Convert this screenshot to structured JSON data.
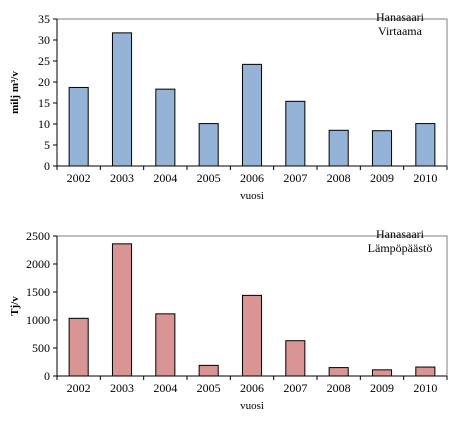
{
  "chart_data": [
    {
      "type": "bar",
      "title": "Hanasaari",
      "subtitle": "Virtaama",
      "xlabel": "vuosi",
      "ylabel": "milj m³/v",
      "categories": [
        "2002",
        "2003",
        "2004",
        "2005",
        "2006",
        "2007",
        "2008",
        "2009",
        "2010"
      ],
      "values": [
        18.7,
        31.7,
        18.3,
        10.1,
        24.2,
        15.4,
        8.5,
        8.4,
        10.1
      ],
      "ylim": [
        0,
        35
      ],
      "yticks": [
        0,
        5,
        10,
        15,
        20,
        25,
        30,
        35
      ],
      "grid": false,
      "legend": "none",
      "colors": {
        "bar": "#95b3d7",
        "edge": "#000000"
      }
    },
    {
      "type": "bar",
      "title": "Hanasaari",
      "subtitle": "Lämpöpäästö",
      "xlabel": "vuosi",
      "ylabel": "Tj/v",
      "categories": [
        "2002",
        "2003",
        "2004",
        "2005",
        "2006",
        "2007",
        "2008",
        "2009",
        "2010"
      ],
      "values": [
        1030,
        2360,
        1110,
        190,
        1440,
        630,
        150,
        110,
        160
      ],
      "ylim": [
        0,
        2500
      ],
      "yticks": [
        0,
        500,
        1000,
        1500,
        2000,
        2500
      ],
      "grid": false,
      "legend": "none",
      "colors": {
        "bar": "#d99594",
        "edge": "#000000"
      }
    }
  ]
}
